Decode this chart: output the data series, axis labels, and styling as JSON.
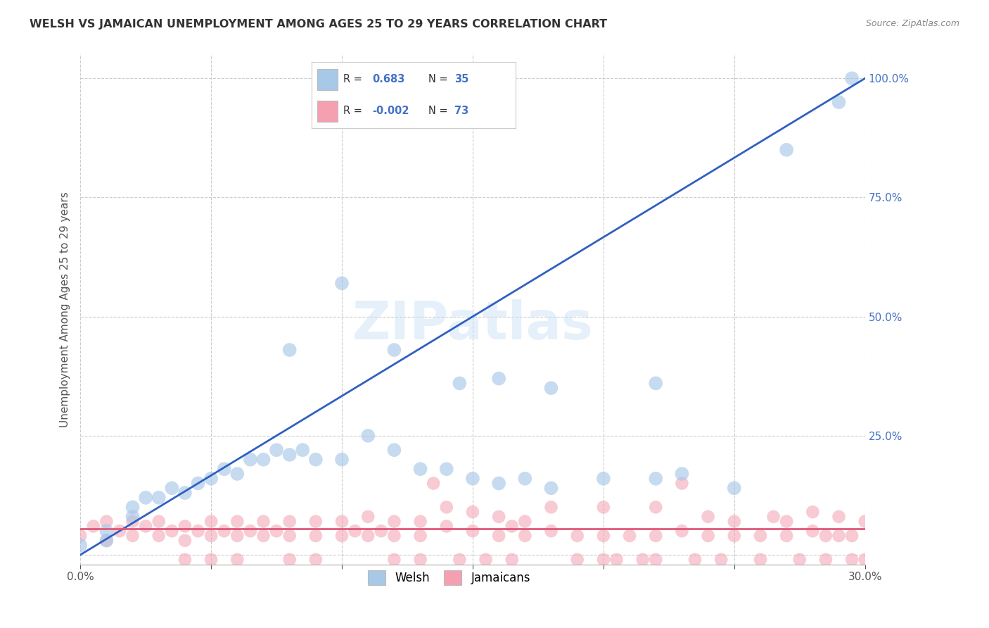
{
  "title": "WELSH VS JAMAICAN UNEMPLOYMENT AMONG AGES 25 TO 29 YEARS CORRELATION CHART",
  "source": "Source: ZipAtlas.com",
  "ylabel": "Unemployment Among Ages 25 to 29 years",
  "xlim": [
    0.0,
    0.3
  ],
  "ylim": [
    -0.02,
    1.05
  ],
  "xticks": [
    0.0,
    0.05,
    0.1,
    0.15,
    0.2,
    0.25,
    0.3
  ],
  "xtick_labels": [
    "0.0%",
    "",
    "",
    "",
    "",
    "",
    "30.0%"
  ],
  "yticks_right": [
    0.0,
    0.25,
    0.5,
    0.75,
    1.0
  ],
  "ytick_labels_right": [
    "",
    "25.0%",
    "50.0%",
    "75.0%",
    "100.0%"
  ],
  "welsh_r": "0.683",
  "welsh_n": "35",
  "jamaican_r": "-0.002",
  "jamaican_n": "73",
  "welsh_color": "#a8c8e8",
  "jamaican_color": "#f4a0b0",
  "welsh_line_color": "#3060c0",
  "jamaican_line_color": "#e05878",
  "welsh_line_x0": 0.0,
  "welsh_line_y0": 0.0,
  "welsh_line_x1": 0.3,
  "welsh_line_y1": 1.0,
  "jamaican_line_y": 0.055,
  "welsh_x": [
    0.0,
    0.01,
    0.01,
    0.02,
    0.02,
    0.025,
    0.03,
    0.035,
    0.04,
    0.045,
    0.05,
    0.055,
    0.06,
    0.065,
    0.07,
    0.075,
    0.08,
    0.085,
    0.09,
    0.1,
    0.11,
    0.12,
    0.13,
    0.14,
    0.15,
    0.16,
    0.17,
    0.18,
    0.2,
    0.22,
    0.23,
    0.25,
    0.27,
    0.29,
    0.295
  ],
  "welsh_y": [
    0.02,
    0.03,
    0.05,
    0.08,
    0.1,
    0.12,
    0.12,
    0.14,
    0.13,
    0.15,
    0.16,
    0.18,
    0.17,
    0.2,
    0.2,
    0.22,
    0.21,
    0.22,
    0.2,
    0.2,
    0.25,
    0.22,
    0.18,
    0.18,
    0.16,
    0.15,
    0.16,
    0.14,
    0.16,
    0.16,
    0.17,
    0.14,
    0.85,
    0.95,
    1.0
  ],
  "welsh_outlier_x": [
    0.08,
    0.1,
    0.12,
    0.145,
    0.16,
    0.18,
    0.22
  ],
  "welsh_outlier_y": [
    0.43,
    0.57,
    0.43,
    0.36,
    0.37,
    0.35,
    0.36
  ],
  "jamaican_x": [
    0.0,
    0.005,
    0.01,
    0.01,
    0.015,
    0.02,
    0.02,
    0.025,
    0.03,
    0.03,
    0.035,
    0.04,
    0.04,
    0.045,
    0.05,
    0.05,
    0.055,
    0.06,
    0.06,
    0.065,
    0.07,
    0.07,
    0.075,
    0.08,
    0.08,
    0.09,
    0.09,
    0.1,
    0.1,
    0.105,
    0.11,
    0.11,
    0.115,
    0.12,
    0.12,
    0.13,
    0.13,
    0.135,
    0.14,
    0.14,
    0.15,
    0.15,
    0.16,
    0.16,
    0.165,
    0.17,
    0.17,
    0.18,
    0.18,
    0.19,
    0.2,
    0.2,
    0.21,
    0.22,
    0.22,
    0.23,
    0.23,
    0.24,
    0.24,
    0.25,
    0.25,
    0.26,
    0.265,
    0.27,
    0.27,
    0.28,
    0.28,
    0.285,
    0.29,
    0.29,
    0.295,
    0.3
  ],
  "jamaican_y": [
    0.04,
    0.06,
    0.03,
    0.07,
    0.05,
    0.04,
    0.07,
    0.06,
    0.04,
    0.07,
    0.05,
    0.03,
    0.06,
    0.05,
    0.04,
    0.07,
    0.05,
    0.04,
    0.07,
    0.05,
    0.04,
    0.07,
    0.05,
    0.04,
    0.07,
    0.04,
    0.07,
    0.04,
    0.07,
    0.05,
    0.04,
    0.08,
    0.05,
    0.04,
    0.07,
    0.04,
    0.07,
    0.15,
    0.1,
    0.06,
    0.05,
    0.09,
    0.04,
    0.08,
    0.06,
    0.04,
    0.07,
    0.05,
    0.1,
    0.04,
    0.04,
    0.1,
    0.04,
    0.04,
    0.1,
    0.15,
    0.05,
    0.04,
    0.08,
    0.04,
    0.07,
    0.04,
    0.08,
    0.04,
    0.07,
    0.05,
    0.09,
    0.04,
    0.04,
    0.08,
    0.04,
    0.07
  ],
  "jamaican_below_x": [
    0.04,
    0.05,
    0.06,
    0.08,
    0.09,
    0.12,
    0.13,
    0.145,
    0.155,
    0.165,
    0.19,
    0.2,
    0.205,
    0.215,
    0.22,
    0.235,
    0.245,
    0.26,
    0.275,
    0.285,
    0.295,
    0.3
  ],
  "jamaican_below_y": [
    -0.01,
    -0.01,
    -0.01,
    -0.01,
    -0.01,
    -0.01,
    -0.01,
    -0.01,
    -0.01,
    -0.01,
    -0.01,
    -0.01,
    -0.01,
    -0.01,
    -0.01,
    -0.01,
    -0.01,
    -0.01,
    -0.01,
    -0.01,
    -0.01,
    -0.01
  ],
  "watermark": "ZIPatlas",
  "background_color": "#ffffff",
  "grid_color": "#cccccc"
}
